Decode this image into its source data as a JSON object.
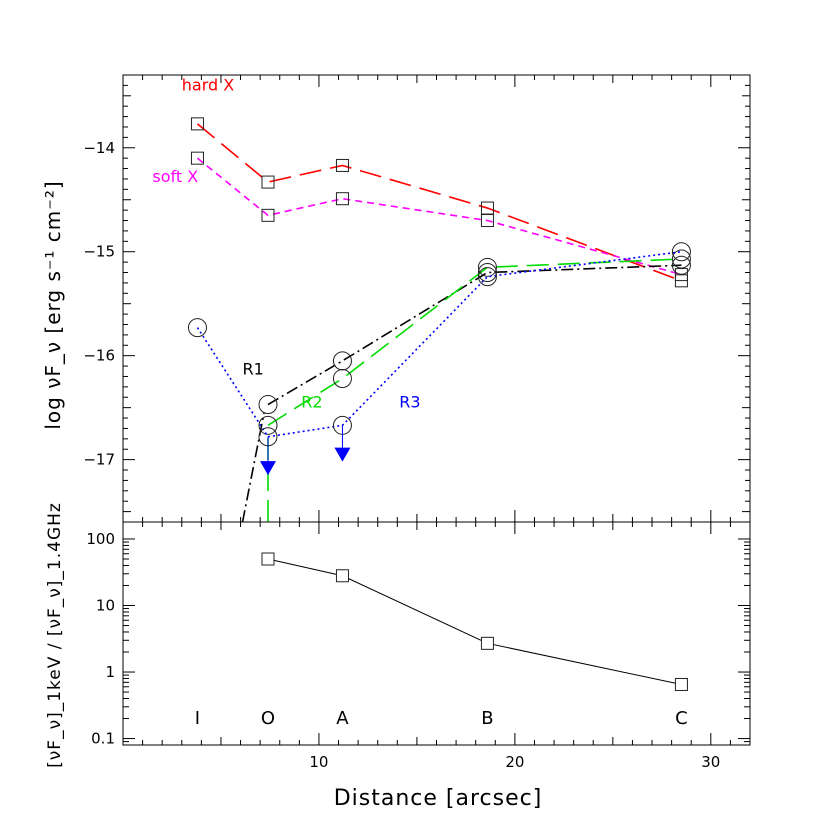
{
  "chart_data": [
    {
      "type": "line",
      "panel": "top",
      "ylabel": "log νF_ν [erg s⁻¹ cm⁻²]",
      "xlim": [
        0,
        32
      ],
      "ylim": [
        -17.6,
        -13.3
      ],
      "yticks": [
        -14,
        -15,
        -16,
        -17
      ],
      "ytick_labels": [
        "−14",
        "−15",
        "−16",
        "−17"
      ],
      "series": [
        {
          "name": "hard X",
          "color": "#ff0000",
          "dash": "long",
          "marker": "square",
          "x": [
            3.8,
            7.4,
            11.2,
            18.6,
            28.5
          ],
          "y": [
            -13.77,
            -14.33,
            -14.17,
            -14.58,
            -15.28
          ]
        },
        {
          "name": "soft X",
          "color": "#ff00ff",
          "dash": "short",
          "marker": "square",
          "x": [
            3.8,
            7.4,
            11.2,
            18.6,
            28.5
          ],
          "y": [
            -14.1,
            -14.65,
            -14.49,
            -14.7,
            -15.22
          ]
        },
        {
          "name": "R1",
          "color": "#000000",
          "dash": "dashdot",
          "marker": "circle",
          "x": [
            7.4,
            11.2,
            18.6,
            28.5
          ],
          "y": [
            -16.47,
            -16.05,
            -15.2,
            -15.13
          ],
          "lead_in": {
            "x": [
              6.1,
              7.2
            ],
            "y": [
              -17.6,
              -16.55
            ]
          }
        },
        {
          "name": "R2",
          "color": "#00dd00",
          "dash": "long",
          "marker": "circle",
          "x": [
            7.4,
            11.2,
            18.6,
            28.5
          ],
          "y": [
            -16.67,
            -16.22,
            -15.15,
            -15.07
          ],
          "lead_in": {
            "x": [
              7.4,
              7.4
            ],
            "y": [
              -17.6,
              -16.75
            ]
          }
        },
        {
          "name": "R3",
          "color": "#0000ff",
          "dash": "dotted",
          "marker": "circle",
          "x": [
            3.8,
            7.4,
            11.2,
            18.6,
            28.5
          ],
          "y": [
            -15.73,
            -16.78,
            -16.67,
            -15.24,
            -15.0
          ],
          "upper_limits": [
            {
              "x": 7.4,
              "y": -17.13
            },
            {
              "x": 11.2,
              "y": -17.0
            }
          ]
        }
      ]
    },
    {
      "type": "line",
      "panel": "bottom",
      "ylabel": "[νF_ν]_1keV / [νF_ν]_1.4GHz",
      "xlabel": "Distance [arcsec]",
      "xlim": [
        0,
        32
      ],
      "ylim": [
        0.08,
        180
      ],
      "yscale": "log",
      "xticks": [
        10,
        20,
        30
      ],
      "yticks": [
        0.1,
        1,
        10,
        100
      ],
      "ytick_labels": [
        "0.1",
        "1",
        "10",
        "100"
      ],
      "series": [
        {
          "color": "#000000",
          "marker": "square",
          "x": [
            7.4,
            11.2,
            18.6,
            28.5
          ],
          "y": [
            50,
            28,
            2.7,
            0.65
          ]
        }
      ],
      "categories": [
        {
          "label": "I",
          "x": 3.8
        },
        {
          "label": "O",
          "x": 7.4
        },
        {
          "label": "A",
          "x": 11.2
        },
        {
          "label": "B",
          "x": 18.6
        },
        {
          "label": "C",
          "x": 28.5
        }
      ]
    }
  ]
}
